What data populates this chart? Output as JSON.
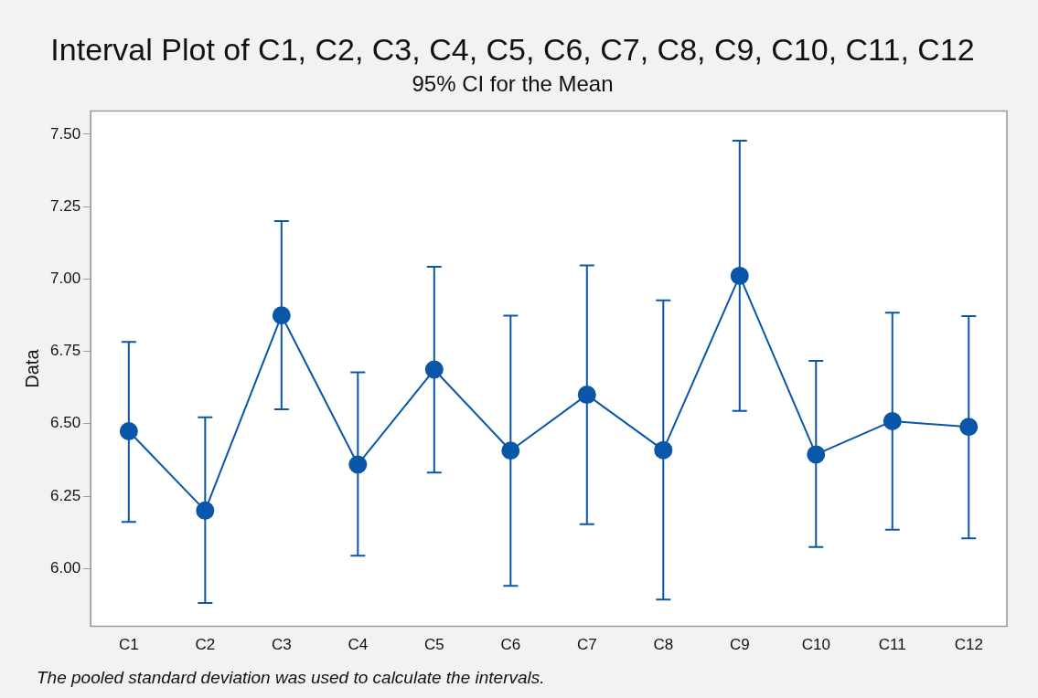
{
  "chart_data": {
    "type": "line",
    "title": "Interval Plot of C1, C2, C3, C4, C5, C6, C7, C8, C9, C10, C11, C12",
    "subtitle": "95% CI for the Mean",
    "ylabel": "Data",
    "categories": [
      "C1",
      "C2",
      "C3",
      "C4",
      "C5",
      "C6",
      "C7",
      "C8",
      "C9",
      "C10",
      "C11",
      "C12"
    ],
    "series": [
      {
        "color": "#0a56a8",
        "values": [
          6.474,
          6.2,
          6.874,
          6.359,
          6.687,
          6.407,
          6.6,
          6.409,
          7.011,
          6.394,
          6.509,
          6.489
        ],
        "errors": [
          [
            6.161,
            6.783
          ],
          [
            5.881,
            6.522
          ],
          [
            6.55,
            7.2
          ],
          [
            6.044,
            6.678
          ],
          [
            6.331,
            7.042
          ],
          [
            5.94,
            6.873
          ],
          [
            6.153,
            7.047
          ],
          [
            5.893,
            6.926
          ],
          [
            6.544,
            7.478
          ],
          [
            6.074,
            6.717
          ],
          [
            6.134,
            6.884
          ],
          [
            6.104,
            6.872
          ]
        ]
      }
    ],
    "ylim": [
      5.8,
      7.58
    ],
    "yticks": [
      {
        "value": 6,
        "label": "6.00"
      },
      {
        "value": 6.25,
        "label": "6.25"
      },
      {
        "value": 6.5,
        "label": "6.50"
      },
      {
        "value": 6.75,
        "label": "6.75"
      },
      {
        "value": 7,
        "label": "7.00"
      },
      {
        "value": 7.25,
        "label": "7.25"
      },
      {
        "value": 7.5,
        "label": "7.50"
      }
    ],
    "grid": false,
    "legend": false,
    "marker": "circle",
    "line_style": "solid",
    "annotations": [
      "The pooled standard deviation was used to calculate the intervals."
    ]
  }
}
